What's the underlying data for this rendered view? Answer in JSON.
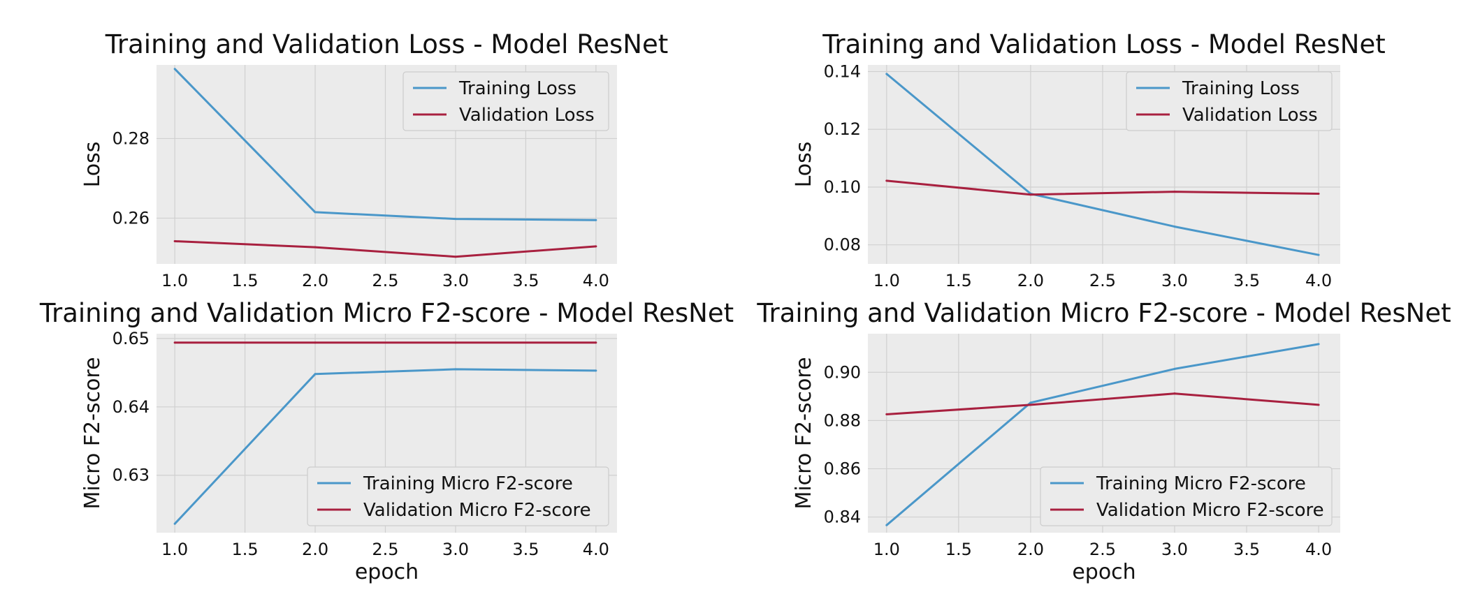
{
  "figure": {
    "background": "#ffffff",
    "plot_background": "#ebebeb",
    "grid_color": "#d0d0d0",
    "series_colors": {
      "training": "#4a97c9",
      "validation": "#a8203f"
    }
  },
  "chart_data": [
    {
      "type": "line",
      "title": "Training and Validation Loss - Model ResNet",
      "xlabel": "",
      "ylabel": "Loss",
      "x": [
        1.0,
        2.0,
        3.0,
        4.0
      ],
      "xlim": [
        0.87,
        4.15
      ],
      "ylim": [
        0.2485,
        0.2985
      ],
      "xticks": [
        1.0,
        1.5,
        2.0,
        2.5,
        3.0,
        3.5,
        4.0
      ],
      "xtick_labels": [
        "1.0",
        "1.5",
        "2.0",
        "2.5",
        "3.0",
        "3.5",
        "4.0"
      ],
      "yticks": [
        0.26,
        0.28
      ],
      "ytick_labels": [
        "0.26",
        "0.28"
      ],
      "grid": true,
      "legend_position": "top-right",
      "series": [
        {
          "name": "Training Loss",
          "color": "#4a97c9",
          "values": [
            0.2975,
            0.2615,
            0.2598,
            0.2595
          ]
        },
        {
          "name": "Validation Loss",
          "color": "#a8203f",
          "values": [
            0.2542,
            0.2527,
            0.2503,
            0.2529
          ]
        }
      ]
    },
    {
      "type": "line",
      "title": "Training and Validation Loss - Model ResNet",
      "xlabel": "",
      "ylabel": "Loss",
      "x": [
        1.0,
        2.0,
        3.0,
        4.0
      ],
      "xlim": [
        0.87,
        4.15
      ],
      "ylim": [
        0.0734,
        0.1423
      ],
      "xticks": [
        1.0,
        1.5,
        2.0,
        2.5,
        3.0,
        3.5,
        4.0
      ],
      "xtick_labels": [
        "1.0",
        "1.5",
        "2.0",
        "2.5",
        "3.0",
        "3.5",
        "4.0"
      ],
      "yticks": [
        0.08,
        0.1,
        0.12,
        0.14
      ],
      "ytick_labels": [
        "0.08",
        "0.10",
        "0.12",
        "0.14"
      ],
      "grid": true,
      "legend_position": "top-right",
      "series": [
        {
          "name": "Training Loss",
          "color": "#4a97c9",
          "values": [
            0.1392,
            0.0977,
            0.0863,
            0.0765
          ]
        },
        {
          "name": "Validation Loss",
          "color": "#a8203f",
          "values": [
            0.1022,
            0.0974,
            0.0984,
            0.0977
          ]
        }
      ]
    },
    {
      "type": "line",
      "title": "Training and Validation Micro F2-score - Model ResNet",
      "xlabel": "epoch",
      "ylabel": "Micro F2-score",
      "x": [
        1.0,
        2.0,
        3.0,
        4.0
      ],
      "xlim": [
        0.87,
        4.15
      ],
      "ylim": [
        0.6216,
        0.6507
      ],
      "xticks": [
        1.0,
        1.5,
        2.0,
        2.5,
        3.0,
        3.5,
        4.0
      ],
      "xtick_labels": [
        "1.0",
        "1.5",
        "2.0",
        "2.5",
        "3.0",
        "3.5",
        "4.0"
      ],
      "yticks": [
        0.63,
        0.64,
        0.65
      ],
      "ytick_labels": [
        "0.63",
        "0.64",
        "0.65"
      ],
      "grid": true,
      "legend_position": "bottom-right",
      "series": [
        {
          "name": "Training Micro F2-score",
          "color": "#4a97c9",
          "values": [
            0.6229,
            0.6448,
            0.6455,
            0.6453
          ]
        },
        {
          "name": "Validation Micro F2-score",
          "color": "#a8203f",
          "values": [
            0.6494,
            0.6494,
            0.6494,
            0.6494
          ]
        }
      ]
    },
    {
      "type": "line",
      "title": "Training and Validation Micro F2-score - Model ResNet",
      "xlabel": "epoch",
      "ylabel": "Micro F2-score",
      "x": [
        1.0,
        2.0,
        3.0,
        4.0
      ],
      "xlim": [
        0.87,
        4.15
      ],
      "ylim": [
        0.8335,
        0.916
      ],
      "xticks": [
        1.0,
        1.5,
        2.0,
        2.5,
        3.0,
        3.5,
        4.0
      ],
      "xtick_labels": [
        "1.0",
        "1.5",
        "2.0",
        "2.5",
        "3.0",
        "3.5",
        "4.0"
      ],
      "yticks": [
        0.84,
        0.86,
        0.88,
        0.9
      ],
      "ytick_labels": [
        "0.84",
        "0.86",
        "0.88",
        "0.90"
      ],
      "grid": true,
      "legend_position": "bottom-right",
      "series": [
        {
          "name": "Training Micro F2-score",
          "color": "#4a97c9",
          "values": [
            0.8366,
            0.8874,
            0.9014,
            0.9117
          ]
        },
        {
          "name": "Validation Micro F2-score",
          "color": "#a8203f",
          "values": [
            0.8826,
            0.8865,
            0.8912,
            0.8865
          ]
        }
      ]
    }
  ]
}
